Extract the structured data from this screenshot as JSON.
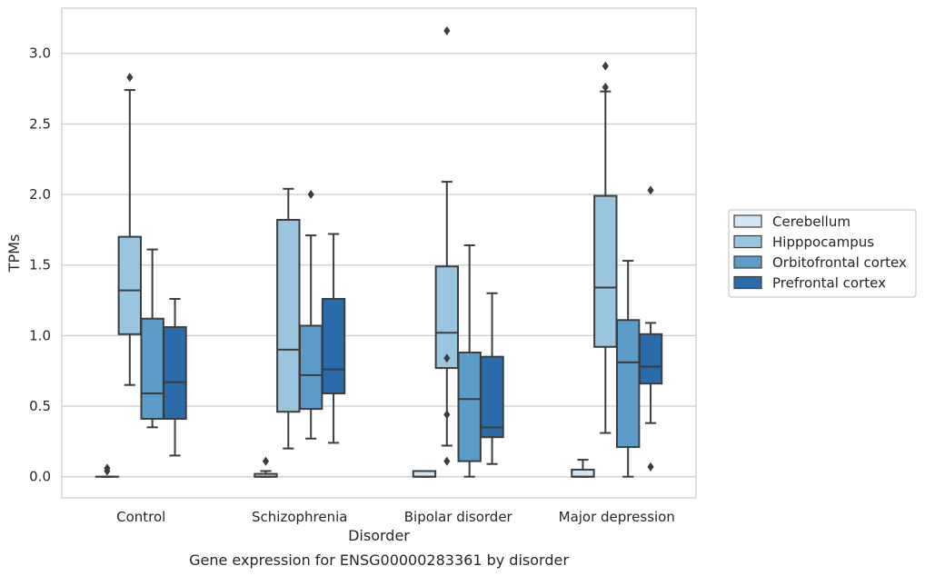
{
  "chart_data": {
    "type": "box",
    "title": "",
    "caption": "Gene expression for ENSG00000283361 by disorder",
    "xlabel": "Disorder",
    "ylabel": "TPMs",
    "ylim": [
      -0.15,
      3.32
    ],
    "yticks": [
      0.0,
      0.5,
      1.0,
      1.5,
      2.0,
      2.5,
      3.0
    ],
    "ytick_labels": [
      "0.0",
      "0.5",
      "1.0",
      "1.5",
      "2.0",
      "2.5",
      "3.0"
    ],
    "grid": "horizontal",
    "legend_position": "right",
    "categories": [
      "Control",
      "Schizophrenia",
      "Bipolar disorder",
      "Major depression"
    ],
    "series": [
      {
        "name": "Cerebellum",
        "color": "#d3e4f3",
        "boxes": [
          {
            "whislo": 0.0,
            "q1": 0.0,
            "med": 0.0,
            "q3": 0.0,
            "whishi": 0.0,
            "fliers": [
              0.04,
              0.06
            ]
          },
          {
            "whislo": 0.0,
            "q1": 0.0,
            "med": 0.0,
            "q3": 0.02,
            "whishi": 0.04,
            "fliers": [
              0.11
            ]
          },
          {
            "whislo": 0.0,
            "q1": 0.0,
            "med": 0.0,
            "q3": 0.04,
            "whishi": 0.04,
            "fliers": []
          },
          {
            "whislo": 0.0,
            "q1": 0.0,
            "med": 0.0,
            "q3": 0.05,
            "whishi": 0.12,
            "fliers": []
          }
        ]
      },
      {
        "name": "Hipppocampus",
        "color": "#9ac5e0",
        "boxes": [
          {
            "whislo": 0.65,
            "q1": 1.01,
            "med": 1.32,
            "q3": 1.7,
            "whishi": 2.74,
            "fliers": [
              2.83
            ]
          },
          {
            "whislo": 0.2,
            "q1": 0.46,
            "med": 0.9,
            "q3": 1.82,
            "whishi": 2.04,
            "fliers": []
          },
          {
            "whislo": 0.22,
            "q1": 0.77,
            "med": 1.02,
            "q3": 1.49,
            "whishi": 2.09,
            "fliers": [
              3.16,
              0.11,
              0.44,
              0.84
            ]
          },
          {
            "whislo": 0.31,
            "q1": 0.92,
            "med": 1.34,
            "q3": 1.99,
            "whishi": 2.73,
            "fliers": [
              2.76,
              2.91
            ]
          }
        ]
      },
      {
        "name": "Orbitofrontal cortex",
        "color": "#5b9cc9",
        "boxes": [
          {
            "whislo": 0.35,
            "q1": 0.41,
            "med": 0.59,
            "q3": 1.12,
            "whishi": 1.61,
            "fliers": []
          },
          {
            "whislo": 0.27,
            "q1": 0.48,
            "med": 0.72,
            "q3": 1.07,
            "whishi": 1.71,
            "fliers": [
              2.0
            ]
          },
          {
            "whislo": 0.0,
            "q1": 0.11,
            "med": 0.55,
            "q3": 0.88,
            "whishi": 1.64,
            "fliers": []
          },
          {
            "whislo": 0.0,
            "q1": 0.21,
            "med": 0.81,
            "q3": 1.11,
            "whishi": 1.53,
            "fliers": []
          }
        ]
      },
      {
        "name": "Prefrontal cortex",
        "color": "#2a6cab",
        "boxes": [
          {
            "whislo": 0.15,
            "q1": 0.41,
            "med": 0.67,
            "q3": 1.06,
            "whishi": 1.26,
            "fliers": []
          },
          {
            "whislo": 0.24,
            "q1": 0.59,
            "med": 0.76,
            "q3": 1.26,
            "whishi": 1.72,
            "fliers": []
          },
          {
            "whislo": 0.09,
            "q1": 0.28,
            "med": 0.35,
            "q3": 0.85,
            "whishi": 1.3,
            "fliers": []
          },
          {
            "whislo": 0.38,
            "q1": 0.66,
            "med": 0.78,
            "q3": 1.01,
            "whishi": 1.09,
            "fliers": [
              2.03,
              0.07
            ]
          }
        ]
      }
    ]
  }
}
